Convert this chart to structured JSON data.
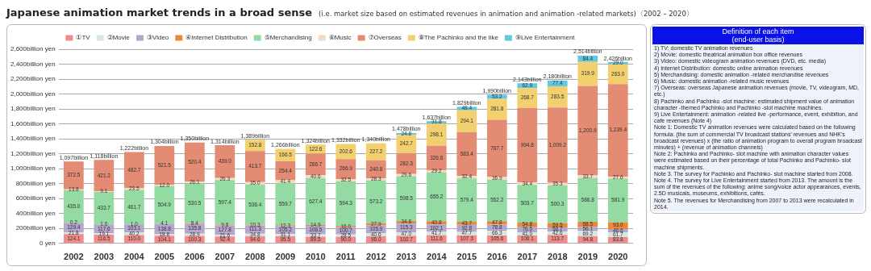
{
  "chart_data": [
    {
      "type": "bar",
      "title": "Japanese animation market trends in a broad sense",
      "subtitle": "(i.e. market size based on estimated revenues in animation and animation -related markets)〈2002 – 2020〉",
      "categories": [
        "2002",
        "2003",
        "2004",
        "2005",
        "2006",
        "2007",
        "2008",
        "2009",
        "2010",
        "2011",
        "2012",
        "2013",
        "2014",
        "2015",
        "2016",
        "2017",
        "2018",
        "2019",
        "2020"
      ],
      "stacked": true,
      "legend": "top",
      "grid": "y",
      "ylim": [
        0,
        2600
      ],
      "yticks": [
        {
          "value": 0,
          "label": "0 yen"
        },
        {
          "value": 200,
          "label": "200billion yen"
        },
        {
          "value": 400,
          "label": "400billion yen"
        },
        {
          "value": 600,
          "label": "600billion yen"
        },
        {
          "value": 800,
          "label": "800billion yen"
        },
        {
          "value": 1000,
          "label": "1,000billion yen"
        },
        {
          "value": 1200,
          "label": "1,200billion yen"
        },
        {
          "value": 1400,
          "label": "1,400billion yen"
        },
        {
          "value": 1600,
          "label": "1,600billion yen"
        },
        {
          "value": 1800,
          "label": "1,800billion yen"
        },
        {
          "value": 2000,
          "label": "2,000billion yen"
        },
        {
          "value": 2200,
          "label": "2,200billion yen"
        },
        {
          "value": 2400,
          "label": "2,400billion yen"
        },
        {
          "value": 2600,
          "label": "2,600billion yen"
        }
      ],
      "totals": [
        "1,097billion",
        "1,118billion",
        "1,222billion",
        "1,304billion",
        "1,350billion",
        "1,314billion",
        "1,389billion",
        "1,266billion",
        "1,324billion",
        "1,332billion",
        "1,340billion",
        "1,478billion",
        "1,637billion",
        "1,829billion",
        "1,990billion",
        "2,143billion",
        "2,180billion",
        "2,514billion",
        "2,426billion"
      ],
      "series": [
        {
          "name": "①TV",
          "color": "#f08c8c",
          "values": [
            124.1,
            116.5,
            110,
            104.1,
            100.3,
            92.4,
            94.6,
            95.5,
            89.5,
            90,
            96,
            102.7,
            111.6,
            107.3,
            105.6,
            106.1,
            113.7,
            94.8,
            83.8
          ],
          "value_labels": [
            "124.1",
            "116.5",
            "110.0",
            "104.1",
            "100.3",
            "92.4",
            "94.6",
            "95.5",
            "89.5",
            "90.0",
            "96.0",
            "102.7",
            "111.6",
            "107.3",
            "105.6",
            "106.1",
            "113.7",
            "94.8",
            "83.8"
          ]
        },
        {
          "name": "②Movie",
          "color": "#d6e8df",
          "values": [
            21.8,
            19.1,
            40.2,
            18.8,
            28.9,
            21.6,
            34.8,
            31.1,
            33.7,
            28.5,
            40.6,
            47,
            41.7,
            47.7,
            66.3,
            41,
            42.6,
            69.2,
            61.7
          ],
          "value_labels": [
            "21.8",
            "19.1",
            "40.2",
            "18.8",
            "28.9",
            "21.6",
            "34.8",
            "31.1",
            "33.7",
            "28.5",
            "40.6",
            "47.0",
            "41.7",
            "47.7",
            "66.3",
            "41.0",
            "42.6",
            "69.2",
            "61.7"
          ]
        },
        {
          "name": "③Video",
          "color": "#b4a6cc",
          "values": [
            129.4,
            117.6,
            103.1,
            138.8,
            135.8,
            127.8,
            111.3,
            105.2,
            108.5,
            100.7,
            105.9,
            115.3,
            102.1,
            92.8,
            78.8,
            76.5,
            58.7,
            56.1,
            46.6
          ],
          "value_labels": [
            "129.4",
            "117.6",
            "103.1",
            "138.8",
            "135.8",
            "127.8",
            "111.3",
            "105.2",
            "108.5",
            "100.7",
            "105.9",
            "115.3",
            "102.1",
            "92.8",
            "78.8",
            "76.5",
            "58.7",
            "56.1",
            "46.6"
          ]
        },
        {
          "name": "④Internet Distribution",
          "color": "#e8893c",
          "values": [
            0.2,
            1,
            1,
            4.1,
            8.4,
            9.8,
            10.3,
            12.3,
            14.9,
            16,
            27.9,
            34.8,
            40.8,
            43.7,
            47.8,
            54.8,
            59.5,
            68.5,
            93
          ],
          "value_labels": [
            "0.2",
            "1.0",
            "1.0",
            "4.1",
            "8.4",
            "9.8",
            "10.3",
            "12.3",
            "14.9",
            "16.0",
            "27.9",
            "34.8",
            "40.8",
            "43.7",
            "47.8",
            "54.8",
            "59.5",
            "68.5",
            "93.0"
          ]
        },
        {
          "name": "⑤Merchandising",
          "color": "#93dba3",
          "values": [
            435,
            433.7,
            461.7,
            504.9,
            530.5,
            597.4,
            536.4,
            559.7,
            627.4,
            594.3,
            573.2,
            598.5,
            655.2,
            579.4,
            552.2,
            503.7,
            500.3,
            586.8,
            581.9
          ],
          "value_labels": [
            "435.0",
            "433.7",
            "461.7",
            "504.9",
            "530.5",
            "597.4",
            "536.4",
            "559.7",
            "627.4",
            "594.3",
            "573.2",
            "598.5",
            "655.2",
            "579.4",
            "552.2",
            "503.7",
            "500.3",
            "586.8",
            "581.9"
          ]
        },
        {
          "name": "⑥Music",
          "color": "#f4dcc4",
          "values": [
            13.8,
            9.1,
            23.5,
            12,
            26.1,
            26.3,
            35,
            41.4,
            40.6,
            32.5,
            28.3,
            29.6,
            29.2,
            32.4,
            36.9,
            34.4,
            35.3,
            33.7,
            27.6
          ],
          "value_labels": [
            "13.8",
            "9.1",
            "23.5",
            "12.0",
            "26.1",
            "26.3",
            "35.0",
            "41.4",
            "40.6",
            "32.5",
            "28.3",
            "29.6",
            "29.2",
            "32.4",
            "36.9",
            "34.4",
            "35.3",
            "33.7",
            "27.6"
          ]
        },
        {
          "name": "⑦Overseas",
          "color": "#e38b73",
          "values": [
            372.5,
            421.2,
            482.7,
            521.5,
            520.4,
            439,
            413.7,
            254.4,
            286.7,
            266.9,
            240.8,
            282.3,
            326.6,
            583.4,
            767.7,
            994.8,
            1009.2,
            1200.9,
            1239.4
          ],
          "value_labels": [
            "372.5",
            "421.2",
            "482.7",
            "521.5",
            "520.4",
            "439.0",
            "413.7",
            "254.4",
            "286.7",
            "266.9",
            "240.8",
            "282.3",
            "326.6",
            "583.4",
            "767.7",
            "994.8",
            "1,009.2",
            "1,200.9",
            "1,239.4"
          ]
        },
        {
          "name": "⑧The Pachinko and the like",
          "color": "#f2d070",
          "values": [
            null,
            null,
            null,
            null,
            null,
            null,
            152.8,
            166.5,
            122.6,
            202.6,
            227.2,
            242.7,
            298.1,
            294.1,
            281.8,
            268.7,
            283.5,
            319.9,
            263
          ],
          "value_labels": [
            null,
            null,
            null,
            null,
            null,
            null,
            "152.8",
            "166.5",
            "122.6",
            "202.6",
            "227.2",
            "242.7",
            "298.1",
            "294.1",
            "281.8",
            "268.7",
            "283.5",
            "319.9",
            "263.0"
          ]
        },
        {
          "name": "⑨Live Entertainment",
          "color": "#62c8e2",
          "values": [
            null,
            null,
            null,
            null,
            null,
            null,
            null,
            null,
            null,
            null,
            null,
            24.8,
            31.8,
            48.4,
            53.2,
            62.9,
            77.4,
            84.4,
            29
          ],
          "value_labels": [
            null,
            null,
            null,
            null,
            null,
            null,
            null,
            null,
            null,
            null,
            null,
            "24.8",
            "31.8",
            "48.4",
            "53.2",
            "62.9",
            "77.4",
            "84.4",
            "29.0"
          ]
        }
      ]
    },
    {
      "type": "other",
      "title": "Definition of each item",
      "subtitle": "(end-user basis)",
      "annotations": [
        "1) TV: domestic TV animation revenues",
        "2) Movie: domestic theatrical animation box office revenues",
        "3) Video: domestic videogram animation revenues (DVD, etc. media)",
        "4) Internet Distribution: domestic online animation revenues",
        "5) Merchandising: domestic animation -related merchandise revenues",
        "6) Music: domestic animation -related music revenues",
        "7) Overseas: overseas Japanese animation revenues (movie, TV, videogram, MD, etc.)",
        "8) Pachinko and Pachinko -slot machine: estimated shipment value of animation character -themed Pachinko and Pachinko -slot machine machines.",
        "9) Live Entertainment: animation -related live -performance, event, exhibition, and cafe revenues (Note 4)",
        "Note 1: Domestic TV animation revenues were calculated based on the following formula: (the sum of commercial TV broadcast stations' revenues and NHK's broadcast revenues) x (the ratio of animation program to overall program broadcast minutes) + (revenue of animation channels)",
        "Note 2: Pachinko and Pachinko- slot machine with animation character values were estimated based on their percentage of total Pachinko and Pachinko- slot machine shipments.",
        "Note 3. The survey for Pachinko and Pachinko- slot machine started from 2008.",
        "Note 4. The survey for Live Entertainment started from 2013. The amount is the sum of the revenues of the following: anime song/voice actor appearances, events, 2.5D musicals, museums, exhibitions, cafés.",
        "Note 5. The revenues for Merchandising from 2007 to 2013 were recalculated in 2014."
      ]
    }
  ]
}
